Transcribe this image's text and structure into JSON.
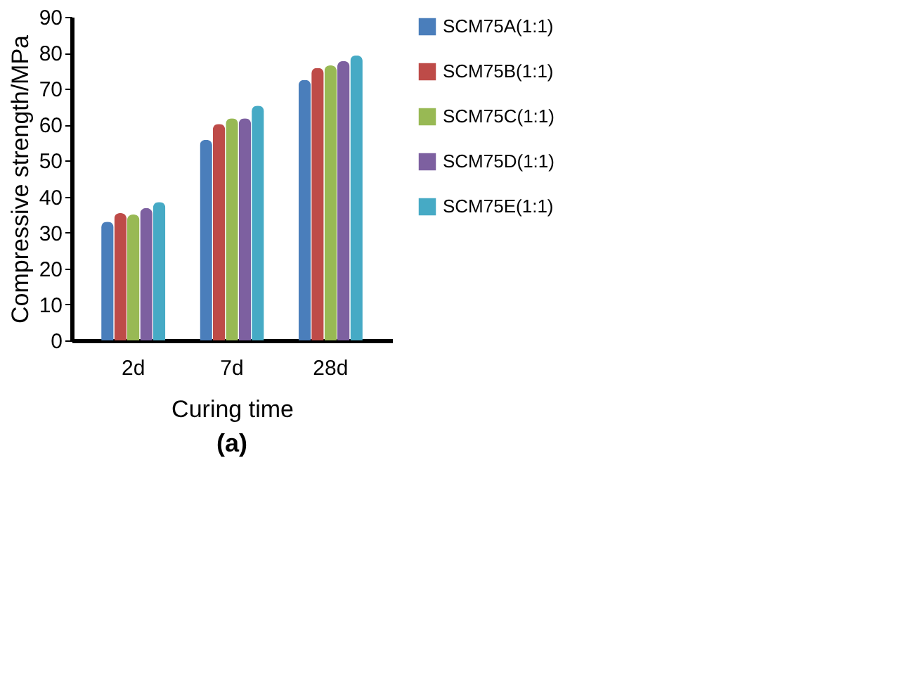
{
  "chart_data": {
    "type": "bar",
    "xlabel": "Curing time",
    "ylabel": "Compressive strength/MPa",
    "categories": [
      "2d",
      "7d",
      "28d"
    ],
    "series": [
      {
        "name": "SCM75A(1:1)",
        "color": "#4a7ebb",
        "values": [
          33.0,
          55.8,
          72.5
        ]
      },
      {
        "name": "SCM75B(1:1)",
        "color": "#be4b48",
        "values": [
          35.4,
          60.2,
          75.8
        ]
      },
      {
        "name": "SCM75C(1:1)",
        "color": "#98b954",
        "values": [
          35.0,
          61.8,
          76.5
        ]
      },
      {
        "name": "SCM75D(1:1)",
        "color": "#7d60a0",
        "values": [
          36.8,
          61.8,
          77.7
        ]
      },
      {
        "name": "SCM75E(1:1)",
        "color": "#46aac5",
        "values": [
          38.5,
          65.3,
          79.3
        ]
      }
    ],
    "ylim": [
      0,
      90
    ],
    "yticks": [
      0,
      10,
      20,
      30,
      40,
      50,
      60,
      70,
      80,
      90
    ],
    "grid": false,
    "legend": "right",
    "annotations": [
      "(a)"
    ]
  }
}
